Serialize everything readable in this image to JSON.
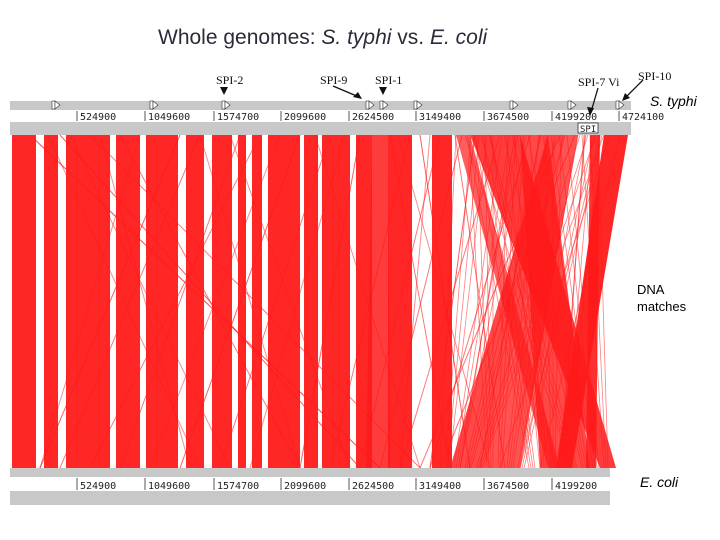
{
  "title": {
    "prefix": "Whole genomes: ",
    "genome_a": "S. typhi",
    "connector": " vs. ",
    "genome_b": "E. coli"
  },
  "labels": {
    "typhi": "S. typhi",
    "dna_line1": "DNA",
    "dna_line2": "matches",
    "ecoli": "E. coli"
  },
  "islands": {
    "spi2": "SPI-2",
    "spi9": "SPI-9",
    "spi1": "SPI-1",
    "spi7": "SPI-7 Vi",
    "spi10": "SPI-10"
  },
  "track_top": {
    "ticks": [
      "524900",
      "1049600",
      "1574700",
      "2099600",
      "2624500",
      "3149400",
      "3674500",
      "4199200",
      "4724100"
    ],
    "small_box": "SPI"
  },
  "track_bottom": {
    "ticks": [
      "524900",
      "1049600",
      "1574700",
      "2099600",
      "2624500",
      "3149400",
      "3674500",
      "4199200"
    ]
  },
  "colors": {
    "match": "#ff1a1a",
    "track": "#c8c8c8",
    "title": "#2b2b3a"
  }
}
